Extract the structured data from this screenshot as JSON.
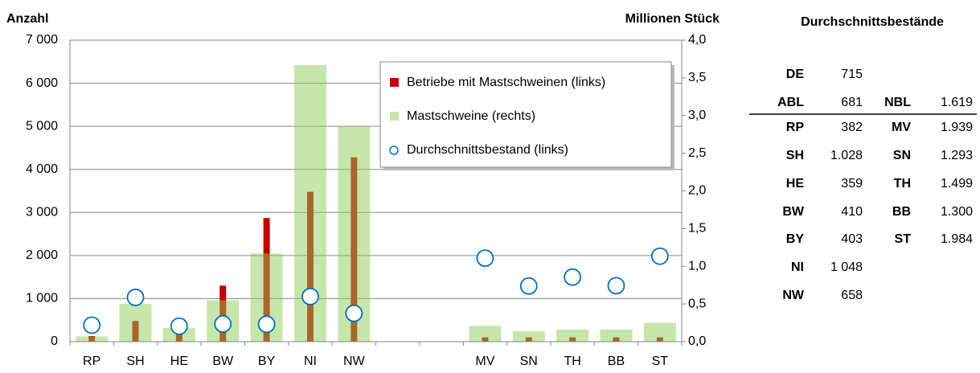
{
  "chart_data": {
    "type": "bar-line",
    "ylabel": "Anzahl",
    "y2label": "Millionen Stück",
    "categories": [
      "RP",
      "SH",
      "HE",
      "BW",
      "BY",
      "NI",
      "NW",
      null,
      null,
      "MV",
      "SN",
      "TH",
      "BB",
      "ST"
    ],
    "ylim": [
      0,
      7000
    ],
    "yticks": [
      0,
      {
        "value": 1000,
        "label": "1 000"
      },
      {
        "value": 2000,
        "label": "2 000"
      },
      {
        "value": 3000,
        "label": "3 000"
      },
      {
        "value": 4000,
        "label": "4 000"
      },
      {
        "value": 5000,
        "label": "5 000"
      },
      {
        "value": 6000,
        "label": "6 000"
      },
      {
        "value": 7000,
        "label": "7 000"
      }
    ],
    "y2lim": [
      0,
      4
    ],
    "y2ticks": [
      {
        "value": 0,
        "label": "0,0"
      },
      {
        "value": 0.5,
        "label": "0,5"
      },
      {
        "value": 1,
        "label": "1,0"
      },
      {
        "value": 1.5,
        "label": "1,5"
      },
      {
        "value": 2,
        "label": "2,0"
      },
      {
        "value": 2.5,
        "label": "2,5"
      },
      {
        "value": 3,
        "label": "3,0"
      },
      {
        "value": 3.5,
        "label": "3,5"
      },
      {
        "value": 4,
        "label": "4,0"
      }
    ],
    "grid": true,
    "legend": "top-right",
    "series": [
      {
        "name": "Betriebe mit Mastschweinen (links)",
        "color": "#c00000",
        "kind": "bar",
        "axis": "y",
        "values": [
          130,
          480,
          280,
          1300,
          2870,
          3480,
          4280,
          null,
          null,
          100,
          100,
          100,
          100,
          100
        ]
      },
      {
        "name": "Mastschweine (rechts)",
        "color": "#8fce5a",
        "kind": "bar",
        "axis": "y2",
        "values": [
          0.07,
          0.5,
          0.18,
          0.55,
          1.17,
          3.67,
          2.85,
          null,
          null,
          0.21,
          0.14,
          0.16,
          0.16,
          0.25
        ]
      },
      {
        "name": "Durchschnittsbestand (links)",
        "color": "#0070c0",
        "kind": "marker",
        "axis": "y",
        "values": [
          382,
          1028,
          359,
          410,
          403,
          1048,
          658,
          null,
          null,
          1939,
          1293,
          1499,
          1300,
          1984
        ]
      }
    ]
  },
  "table": {
    "title": "Durchschnittsbestände",
    "rows": [
      [
        "DE",
        "715"
      ],
      [
        "ABL",
        "681",
        "NBL",
        "1.619"
      ],
      [
        "RP",
        "382",
        "MV",
        "1.939"
      ],
      [
        "SH",
        "1.028",
        "SN",
        "1.293"
      ],
      [
        "HE",
        "359",
        "TH",
        "1.499"
      ],
      [
        "BW",
        "410",
        "BB",
        "1.300"
      ],
      [
        "BY",
        "403",
        "ST",
        "1.984"
      ],
      [
        "NI",
        "1 048"
      ],
      [
        "NW",
        "658"
      ]
    ]
  }
}
